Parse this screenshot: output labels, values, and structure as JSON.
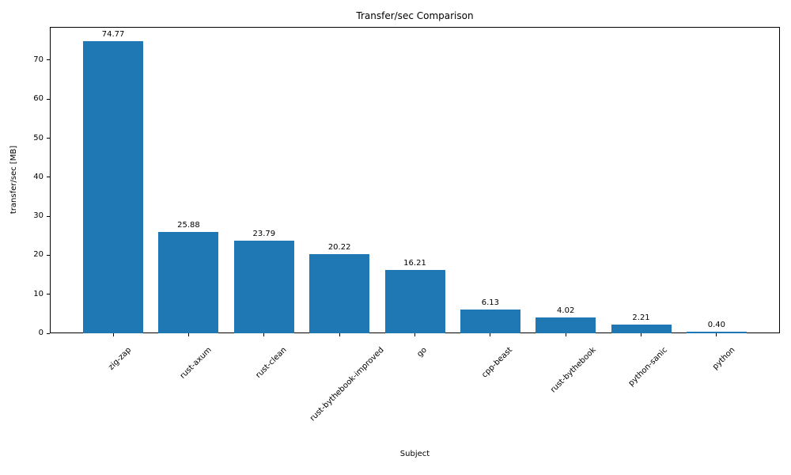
{
  "chart_data": {
    "type": "bar",
    "title": "Transfer/sec Comparison",
    "xlabel": "Subject",
    "ylabel": "transfer/sec [MB]",
    "categories": [
      "zig-zap",
      "rust-axum",
      "rust-clean",
      "rust-bythebook-improved",
      "go",
      "cpp-beast",
      "rust-bythebook",
      "python-sanic",
      "python"
    ],
    "values": [
      74.77,
      25.88,
      23.79,
      20.22,
      16.21,
      6.13,
      4.02,
      2.21,
      0.4
    ],
    "value_labels": [
      "74.77",
      "25.88",
      "23.79",
      "20.22",
      "16.21",
      "6.13",
      "4.02",
      "2.21",
      "0.40"
    ],
    "yticks": [
      "0",
      "10",
      "20",
      "30",
      "40",
      "50",
      "60",
      "70"
    ],
    "ylim": [
      0,
      78.5
    ],
    "x_tick_rotation": 45,
    "grid": false,
    "legend": "none",
    "bar_color": "#1f77b4",
    "spine_color": "#000000",
    "text_color": "#000000",
    "background_color": "#ffffff"
  }
}
